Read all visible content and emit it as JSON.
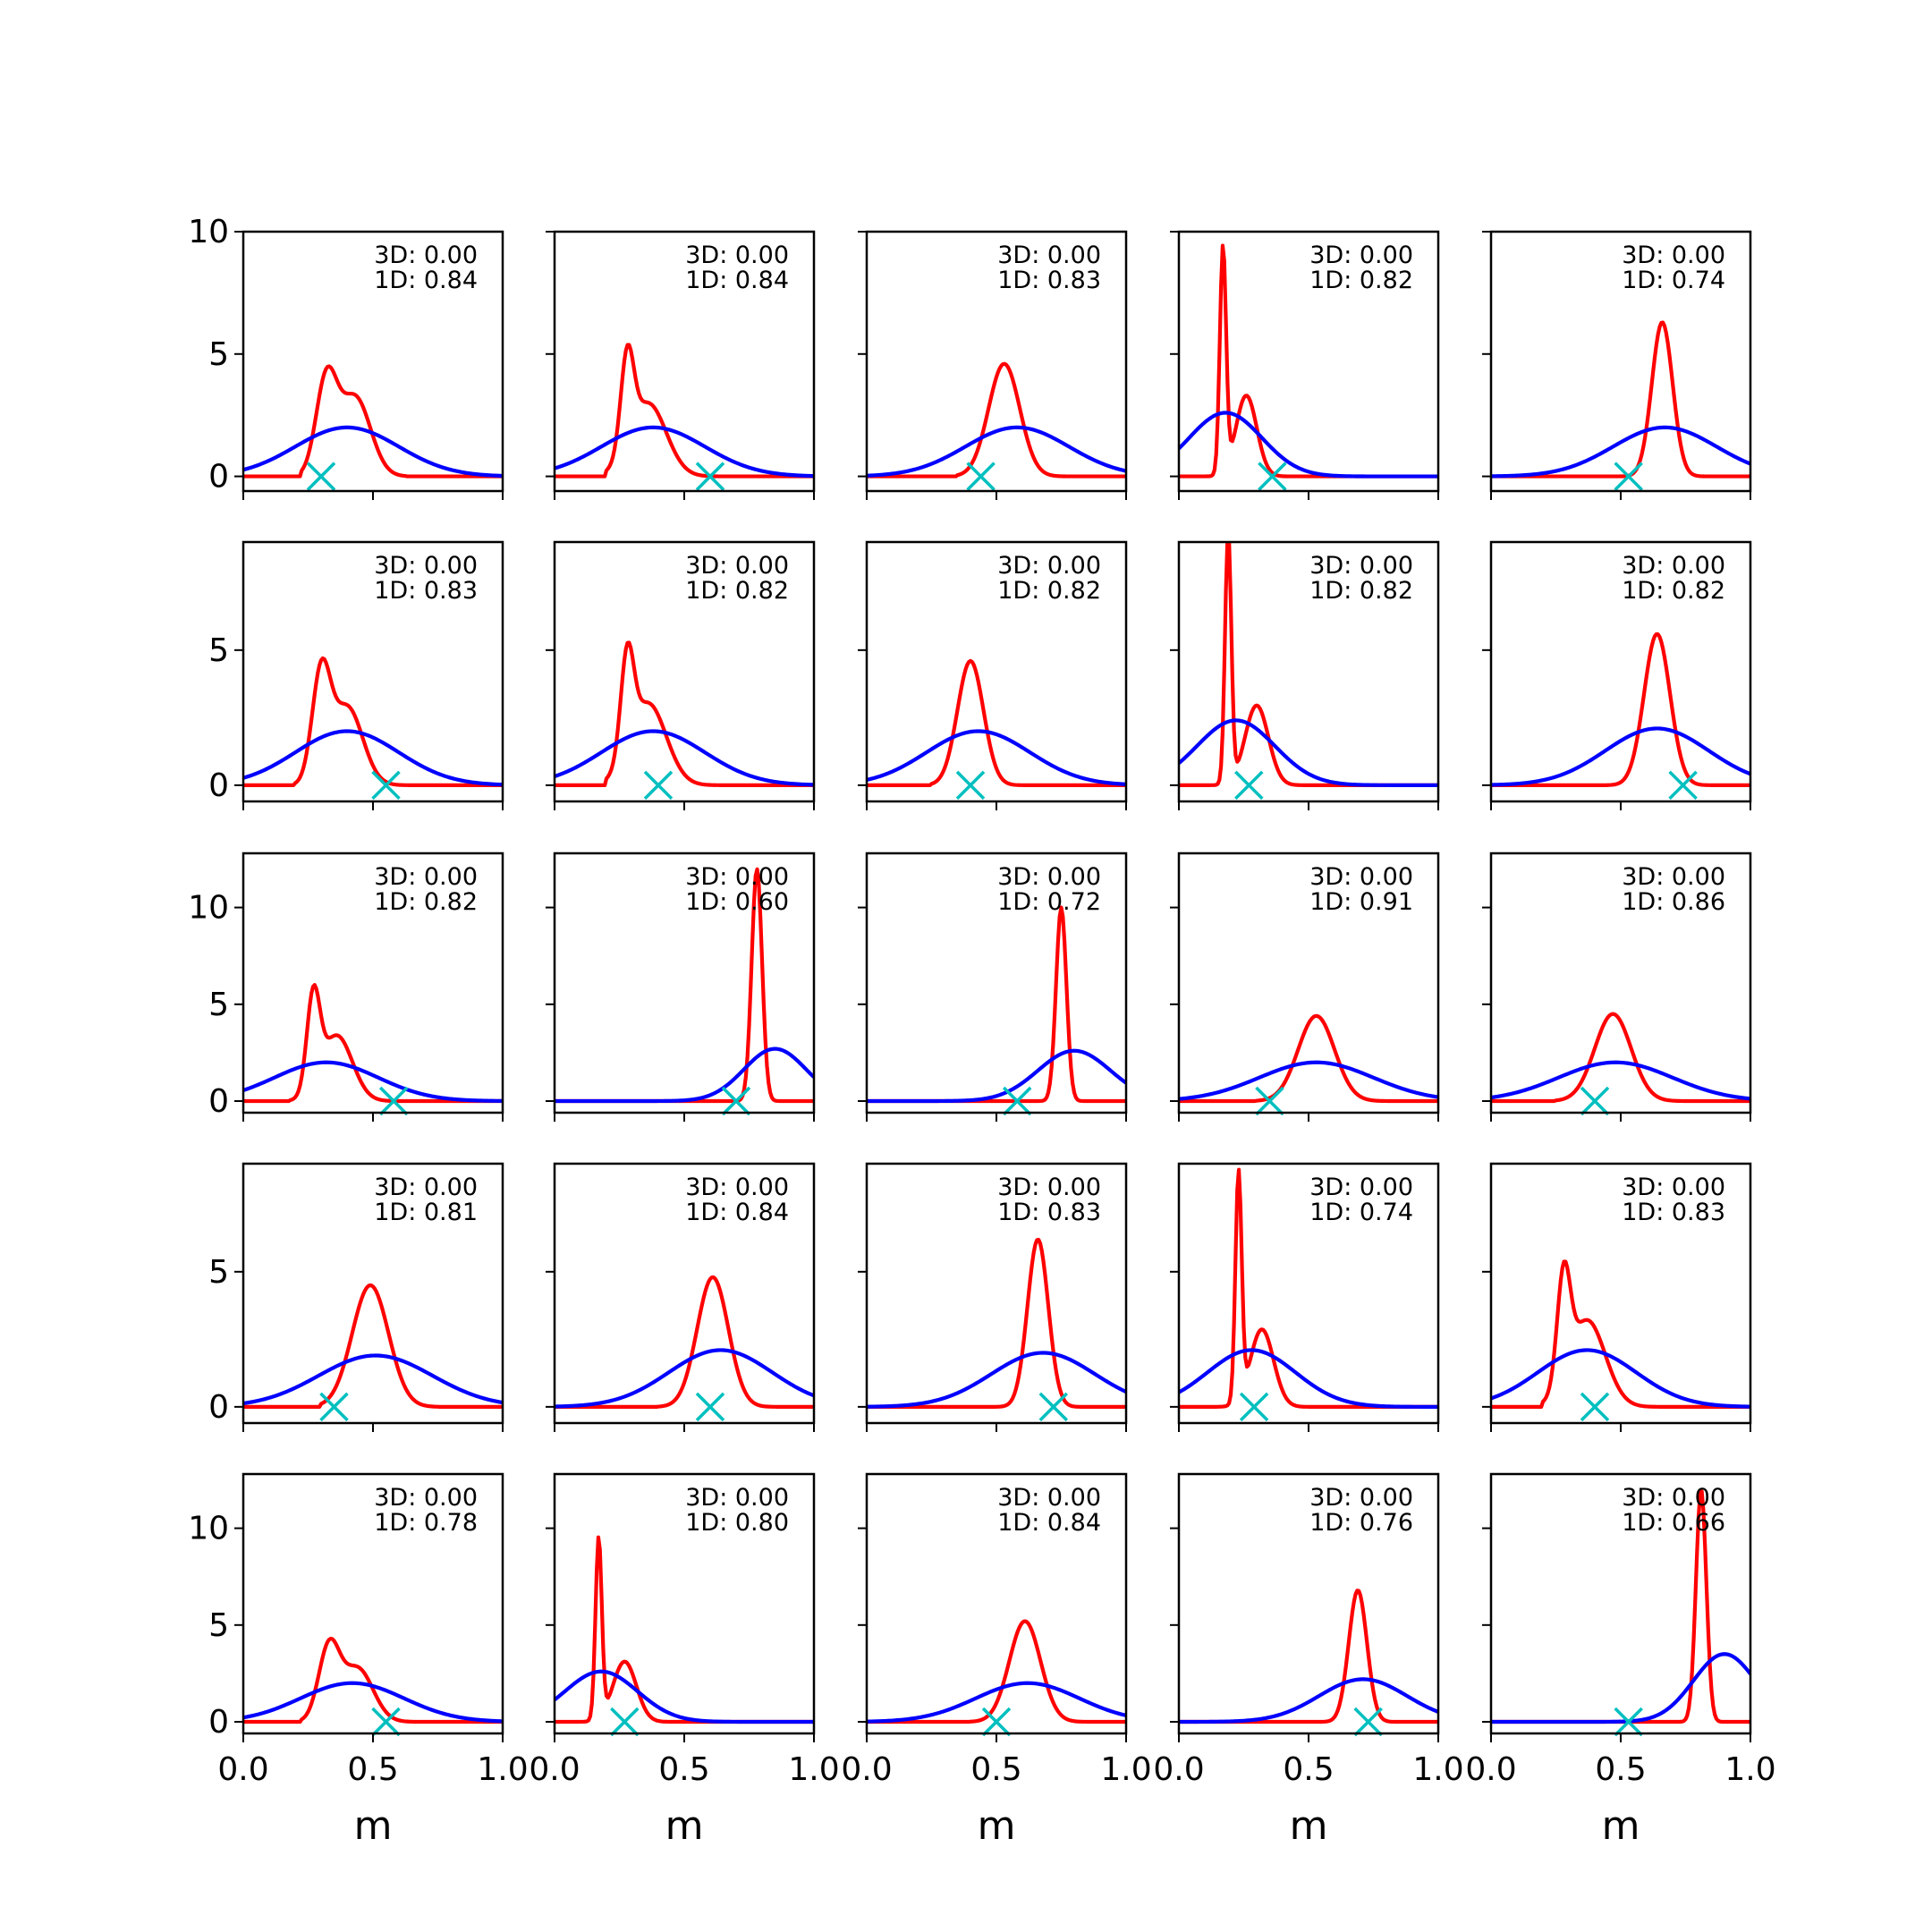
{
  "chart_data": {
    "type": "line",
    "layout": "5x5 grid of small multiples",
    "xlabel": "m",
    "xlim": [
      0.0,
      1.0
    ],
    "xticks": [
      "0.0",
      "0.5",
      "1.0"
    ],
    "row_ylims": [
      [
        -0.6,
        10.0
      ],
      [
        -0.6,
        9.0
      ],
      [
        -0.6,
        12.8
      ],
      [
        -0.6,
        9.0
      ],
      [
        -0.6,
        12.8
      ]
    ],
    "row_yticks": [
      [
        "0",
        "5",
        "10"
      ],
      [
        "0",
        "5"
      ],
      [
        "0",
        "5",
        "10"
      ],
      [
        "0",
        "5"
      ],
      [
        "0",
        "5",
        "10"
      ]
    ],
    "grid": false,
    "series_colors": {
      "red": "#ff0000",
      "blue": "#0000ff",
      "marker": "#00bfbf"
    },
    "panels": [
      {
        "row": 0,
        "col": 0,
        "label3d": "3D: 0.00",
        "label1d": "1D: 0.84",
        "red": [
          {
            "mu": 0.32,
            "sd": 0.04,
            "h": 4.5,
            "w": 0.6
          },
          {
            "mu": 0.43,
            "sd": 0.06,
            "h": 3.3,
            "w": 0.7
          }
        ],
        "redLimits": [
          0.22,
          0.63
        ],
        "blue": [
          {
            "mu": 0.4,
            "sd": 0.2,
            "h": 2.0,
            "w": 1
          }
        ],
        "marker": 0.3
      },
      {
        "row": 0,
        "col": 1,
        "label3d": "3D: 0.00",
        "label1d": "1D: 0.84",
        "red": [
          {
            "mu": 0.28,
            "sd": 0.025,
            "h": 5.4,
            "w": 0.6
          },
          {
            "mu": 0.36,
            "sd": 0.07,
            "h": 3.2,
            "w": 0.8
          }
        ],
        "redLimits": [
          0.2,
          0.7
        ],
        "blue": [
          {
            "mu": 0.38,
            "sd": 0.2,
            "h": 2.0,
            "w": 1
          }
        ],
        "marker": 0.6
      },
      {
        "row": 0,
        "col": 2,
        "label3d": "3D: 0.00",
        "label1d": "1D: 0.83",
        "red": [
          {
            "mu": 0.53,
            "sd": 0.06,
            "h": 4.6,
            "w": 1
          }
        ],
        "redLimits": [
          0.35,
          0.8
        ],
        "blue": [
          {
            "mu": 0.58,
            "sd": 0.2,
            "h": 2.0,
            "w": 1
          }
        ],
        "marker": 0.44
      },
      {
        "row": 0,
        "col": 3,
        "label3d": "3D: 0.00",
        "label1d": "1D: 0.82",
        "red": [
          {
            "mu": 0.17,
            "sd": 0.012,
            "h": 9.5,
            "w": 1
          },
          {
            "mu": 0.26,
            "sd": 0.04,
            "h": 3.4,
            "w": 1
          }
        ],
        "redLimits": [
          0.1,
          0.6
        ],
        "blue": [
          {
            "mu": 0.18,
            "sd": 0.14,
            "h": 2.6,
            "w": 1
          }
        ],
        "marker": 0.36
      },
      {
        "row": 0,
        "col": 4,
        "label3d": "3D: 0.00",
        "label1d": "1D: 0.74",
        "red": [
          {
            "mu": 0.66,
            "sd": 0.04,
            "h": 6.3,
            "w": 1
          }
        ],
        "redLimits": [
          0.5,
          0.85
        ],
        "blue": [
          {
            "mu": 0.67,
            "sd": 0.2,
            "h": 2.0,
            "w": 1
          }
        ],
        "marker": 0.53
      },
      {
        "row": 1,
        "col": 0,
        "label3d": "3D: 0.00",
        "label1d": "1D: 0.83",
        "red": [
          {
            "mu": 0.3,
            "sd": 0.035,
            "h": 4.7,
            "w": 0.7
          },
          {
            "mu": 0.4,
            "sd": 0.06,
            "h": 3.5,
            "w": 0.7
          }
        ],
        "redLimits": [
          0.2,
          0.65
        ],
        "blue": [
          {
            "mu": 0.4,
            "sd": 0.2,
            "h": 2.0,
            "w": 1
          }
        ],
        "marker": 0.55
      },
      {
        "row": 1,
        "col": 1,
        "label3d": "3D: 0.00",
        "label1d": "1D: 0.82",
        "red": [
          {
            "mu": 0.28,
            "sd": 0.025,
            "h": 5.3,
            "w": 0.6
          },
          {
            "mu": 0.36,
            "sd": 0.07,
            "h": 3.3,
            "w": 0.8
          }
        ],
        "redLimits": [
          0.2,
          0.7
        ],
        "blue": [
          {
            "mu": 0.38,
            "sd": 0.2,
            "h": 2.0,
            "w": 1
          }
        ],
        "marker": 0.4
      },
      {
        "row": 1,
        "col": 2,
        "label3d": "3D: 0.00",
        "label1d": "1D: 0.82",
        "red": [
          {
            "mu": 0.4,
            "sd": 0.05,
            "h": 4.6,
            "w": 1
          }
        ],
        "redLimits": [
          0.25,
          0.7
        ],
        "blue": [
          {
            "mu": 0.43,
            "sd": 0.2,
            "h": 2.0,
            "w": 1
          }
        ],
        "marker": 0.4
      },
      {
        "row": 1,
        "col": 3,
        "label3d": "3D: 0.00",
        "label1d": "1D: 0.82",
        "red": [
          {
            "mu": 0.19,
            "sd": 0.012,
            "h": 9.4,
            "w": 1
          },
          {
            "mu": 0.3,
            "sd": 0.045,
            "h": 3.0,
            "w": 1
          }
        ],
        "redLimits": [
          0.12,
          0.6
        ],
        "blue": [
          {
            "mu": 0.22,
            "sd": 0.15,
            "h": 2.4,
            "w": 1
          }
        ],
        "marker": 0.27
      },
      {
        "row": 1,
        "col": 4,
        "label3d": "3D: 0.00",
        "label1d": "1D: 0.82",
        "red": [
          {
            "mu": 0.64,
            "sd": 0.05,
            "h": 5.6,
            "w": 1
          }
        ],
        "redLimits": [
          0.45,
          0.85
        ],
        "blue": [
          {
            "mu": 0.64,
            "sd": 0.2,
            "h": 2.1,
            "w": 1
          }
        ],
        "marker": 0.74
      },
      {
        "row": 2,
        "col": 0,
        "label3d": "3D: 0.00",
        "label1d": "1D: 0.82",
        "red": [
          {
            "mu": 0.27,
            "sd": 0.025,
            "h": 6.0,
            "w": 0.6
          },
          {
            "mu": 0.36,
            "sd": 0.06,
            "h": 3.6,
            "w": 0.7
          }
        ],
        "redLimits": [
          0.18,
          0.65
        ],
        "blue": [
          {
            "mu": 0.32,
            "sd": 0.2,
            "h": 2.0,
            "w": 1
          }
        ],
        "marker": 0.58
      },
      {
        "row": 2,
        "col": 1,
        "label3d": "3D: 0.00",
        "label1d": "1D: 0.60",
        "red": [
          {
            "mu": 0.78,
            "sd": 0.02,
            "h": 12.0,
            "w": 1
          }
        ],
        "redLimits": [
          0.65,
          0.98
        ],
        "blue": [
          {
            "mu": 0.85,
            "sd": 0.12,
            "h": 2.7,
            "w": 1
          }
        ],
        "marker": 0.7
      },
      {
        "row": 2,
        "col": 2,
        "label3d": "3D: 0.00",
        "label1d": "1D: 0.72",
        "red": [
          {
            "mu": 0.75,
            "sd": 0.02,
            "h": 10.0,
            "w": 1
          }
        ],
        "redLimits": [
          0.62,
          0.98
        ],
        "blue": [
          {
            "mu": 0.8,
            "sd": 0.14,
            "h": 2.6,
            "w": 1
          }
        ],
        "marker": 0.58
      },
      {
        "row": 2,
        "col": 3,
        "label3d": "3D: 0.00",
        "label1d": "1D: 0.91",
        "red": [
          {
            "mu": 0.53,
            "sd": 0.07,
            "h": 4.4,
            "w": 1
          }
        ],
        "redLimits": [
          0.3,
          0.8
        ],
        "blue": [
          {
            "mu": 0.53,
            "sd": 0.22,
            "h": 2.0,
            "w": 1
          }
        ],
        "marker": 0.35
      },
      {
        "row": 2,
        "col": 4,
        "label3d": "3D: 0.00",
        "label1d": "1D: 0.86",
        "red": [
          {
            "mu": 0.47,
            "sd": 0.07,
            "h": 4.5,
            "w": 1
          }
        ],
        "redLimits": [
          0.25,
          0.75
        ],
        "blue": [
          {
            "mu": 0.48,
            "sd": 0.22,
            "h": 2.0,
            "w": 1
          }
        ],
        "marker": 0.4
      },
      {
        "row": 3,
        "col": 0,
        "label3d": "3D: 0.00",
        "label1d": "1D: 0.81",
        "red": [
          {
            "mu": 0.49,
            "sd": 0.07,
            "h": 4.5,
            "w": 1
          }
        ],
        "redLimits": [
          0.3,
          0.75
        ],
        "blue": [
          {
            "mu": 0.51,
            "sd": 0.22,
            "h": 1.9,
            "w": 1
          }
        ],
        "marker": 0.35
      },
      {
        "row": 3,
        "col": 1,
        "label3d": "3D: 0.00",
        "label1d": "1D: 0.84",
        "red": [
          {
            "mu": 0.61,
            "sd": 0.06,
            "h": 4.8,
            "w": 1
          }
        ],
        "redLimits": [
          0.4,
          0.85
        ],
        "blue": [
          {
            "mu": 0.64,
            "sd": 0.2,
            "h": 2.1,
            "w": 1
          }
        ],
        "marker": 0.6
      },
      {
        "row": 3,
        "col": 2,
        "label3d": "3D: 0.00",
        "label1d": "1D: 0.83",
        "red": [
          {
            "mu": 0.66,
            "sd": 0.04,
            "h": 6.2,
            "w": 1
          }
        ],
        "redLimits": [
          0.5,
          0.85
        ],
        "blue": [
          {
            "mu": 0.68,
            "sd": 0.2,
            "h": 2.0,
            "w": 1
          }
        ],
        "marker": 0.72
      },
      {
        "row": 3,
        "col": 3,
        "label3d": "3D: 0.00",
        "label1d": "1D: 0.74",
        "red": [
          {
            "mu": 0.23,
            "sd": 0.012,
            "h": 8.8,
            "w": 1
          },
          {
            "mu": 0.32,
            "sd": 0.045,
            "h": 3.0,
            "w": 1
          }
        ],
        "redLimits": [
          0.15,
          0.6
        ],
        "blue": [
          {
            "mu": 0.28,
            "sd": 0.17,
            "h": 2.1,
            "w": 1
          }
        ],
        "marker": 0.29
      },
      {
        "row": 3,
        "col": 4,
        "label3d": "3D: 0.00",
        "label1d": "1D: 0.83",
        "red": [
          {
            "mu": 0.28,
            "sd": 0.025,
            "h": 5.4,
            "w": 0.6
          },
          {
            "mu": 0.37,
            "sd": 0.07,
            "h": 3.3,
            "w": 0.8
          }
        ],
        "redLimits": [
          0.2,
          0.68
        ],
        "blue": [
          {
            "mu": 0.37,
            "sd": 0.19,
            "h": 2.1,
            "w": 1
          }
        ],
        "marker": 0.4
      },
      {
        "row": 4,
        "col": 0,
        "label3d": "3D: 0.00",
        "label1d": "1D: 0.78",
        "red": [
          {
            "mu": 0.33,
            "sd": 0.04,
            "h": 4.3,
            "w": 0.7
          },
          {
            "mu": 0.44,
            "sd": 0.06,
            "h": 3.2,
            "w": 0.7
          }
        ],
        "redLimits": [
          0.22,
          0.65
        ],
        "blue": [
          {
            "mu": 0.42,
            "sd": 0.2,
            "h": 2.0,
            "w": 1
          }
        ],
        "marker": 0.55
      },
      {
        "row": 4,
        "col": 1,
        "label3d": "3D: 0.00",
        "label1d": "1D: 0.80",
        "red": [
          {
            "mu": 0.17,
            "sd": 0.012,
            "h": 9.6,
            "w": 1
          },
          {
            "mu": 0.27,
            "sd": 0.045,
            "h": 3.2,
            "w": 1
          }
        ],
        "redLimits": [
          0.1,
          0.6
        ],
        "blue": [
          {
            "mu": 0.18,
            "sd": 0.14,
            "h": 2.6,
            "w": 1
          }
        ],
        "marker": 0.27
      },
      {
        "row": 4,
        "col": 2,
        "label3d": "3D: 0.00",
        "label1d": "1D: 0.84",
        "red": [
          {
            "mu": 0.61,
            "sd": 0.06,
            "h": 5.2,
            "w": 1
          }
        ],
        "redLimits": [
          0.4,
          0.85
        ],
        "blue": [
          {
            "mu": 0.62,
            "sd": 0.2,
            "h": 2.0,
            "w": 1
          }
        ],
        "marker": 0.5
      },
      {
        "row": 4,
        "col": 3,
        "label3d": "3D: 0.00",
        "label1d": "1D: 0.76",
        "red": [
          {
            "mu": 0.69,
            "sd": 0.035,
            "h": 6.8,
            "w": 1
          }
        ],
        "redLimits": [
          0.55,
          0.85
        ],
        "blue": [
          {
            "mu": 0.71,
            "sd": 0.17,
            "h": 2.2,
            "w": 1
          }
        ],
        "marker": 0.73
      },
      {
        "row": 4,
        "col": 4,
        "label3d": "3D: 0.00",
        "label1d": "1D: 0.66",
        "red": [
          {
            "mu": 0.81,
            "sd": 0.02,
            "h": 12.0,
            "w": 1
          }
        ],
        "redLimits": [
          0.68,
          0.99
        ],
        "blue": [
          {
            "mu": 0.9,
            "sd": 0.12,
            "h": 3.5,
            "w": 1
          }
        ],
        "marker": 0.53
      }
    ]
  }
}
